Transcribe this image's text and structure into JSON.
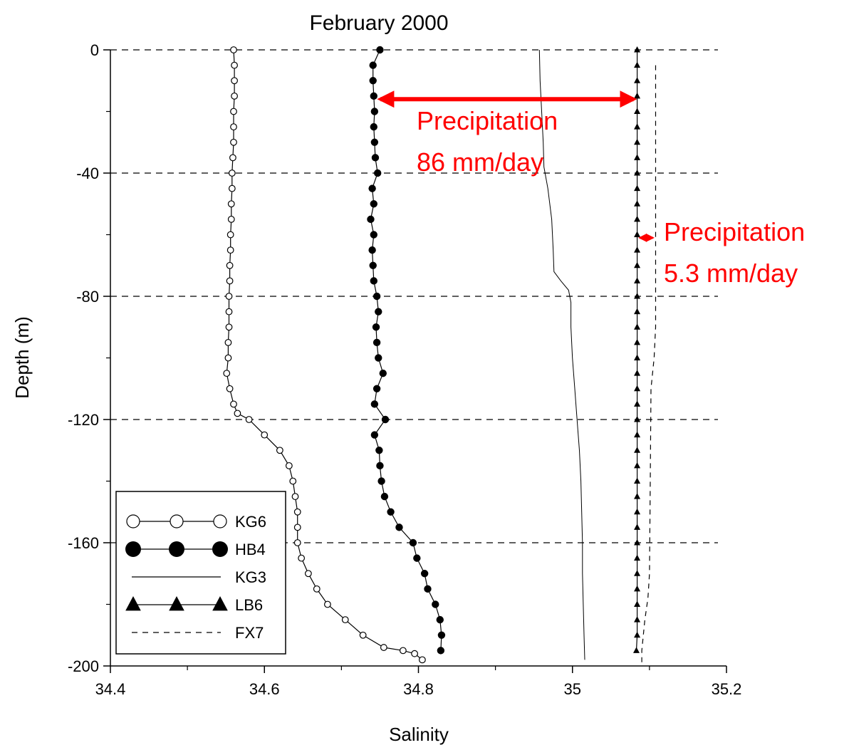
{
  "chart_data": {
    "type": "line",
    "title": "February 2000",
    "xlabel": "Salinity",
    "ylabel": "Depth (m)",
    "xlim": [
      34.4,
      35.2
    ],
    "ylim": [
      -200,
      0
    ],
    "x_ticks": [
      34.4,
      34.6,
      34.8,
      35,
      35.2
    ],
    "x_tick_labels": [
      "34.4",
      "34.6",
      "34.8",
      "35",
      "35.2"
    ],
    "y_ticks": [
      0,
      -40,
      -80,
      -120,
      -160,
      -200
    ],
    "y_tick_labels": [
      "0",
      "-40",
      "-80",
      "-120",
      "-160",
      "-200"
    ],
    "grid": "horizontal dashed at labeled depths",
    "legend_position": "bottom-left",
    "series": [
      {
        "name": "KG6",
        "marker": "open-circle",
        "line": "solid",
        "points": [
          [
            34.56,
            0
          ],
          [
            34.561,
            -5
          ],
          [
            34.561,
            -10
          ],
          [
            34.561,
            -15
          ],
          [
            34.56,
            -20
          ],
          [
            34.56,
            -25
          ],
          [
            34.56,
            -30
          ],
          [
            34.559,
            -35
          ],
          [
            34.558,
            -40
          ],
          [
            34.558,
            -45
          ],
          [
            34.557,
            -50
          ],
          [
            34.557,
            -55
          ],
          [
            34.556,
            -60
          ],
          [
            34.556,
            -65
          ],
          [
            34.555,
            -70
          ],
          [
            34.555,
            -75
          ],
          [
            34.554,
            -80
          ],
          [
            34.554,
            -85
          ],
          [
            34.554,
            -90
          ],
          [
            34.553,
            -95
          ],
          [
            34.553,
            -100
          ],
          [
            34.551,
            -105
          ],
          [
            34.555,
            -110
          ],
          [
            34.56,
            -115
          ],
          [
            34.565,
            -118
          ],
          [
            34.58,
            -120
          ],
          [
            34.6,
            -125
          ],
          [
            34.62,
            -130
          ],
          [
            34.632,
            -135
          ],
          [
            34.637,
            -140
          ],
          [
            34.64,
            -145
          ],
          [
            34.643,
            -150
          ],
          [
            34.643,
            -155
          ],
          [
            34.643,
            -160
          ],
          [
            34.648,
            -165
          ],
          [
            34.657,
            -170
          ],
          [
            34.668,
            -175
          ],
          [
            34.682,
            -180
          ],
          [
            34.705,
            -185
          ],
          [
            34.728,
            -190
          ],
          [
            34.755,
            -194
          ],
          [
            34.78,
            -195
          ],
          [
            34.795,
            -196
          ],
          [
            34.805,
            -198
          ]
        ]
      },
      {
        "name": "HB4",
        "marker": "filled-circle",
        "line": "solid",
        "points": [
          [
            34.75,
            0
          ],
          [
            34.741,
            -5
          ],
          [
            34.741,
            -10
          ],
          [
            34.742,
            -15
          ],
          [
            34.743,
            -20
          ],
          [
            34.742,
            -25
          ],
          [
            34.743,
            -30
          ],
          [
            34.744,
            -35
          ],
          [
            34.747,
            -40
          ],
          [
            34.74,
            -45
          ],
          [
            34.742,
            -50
          ],
          [
            34.738,
            -55
          ],
          [
            34.742,
            -60
          ],
          [
            34.74,
            -65
          ],
          [
            34.741,
            -70
          ],
          [
            34.742,
            -75
          ],
          [
            34.746,
            -80
          ],
          [
            34.748,
            -85
          ],
          [
            34.745,
            -90
          ],
          [
            34.746,
            -95
          ],
          [
            34.748,
            -100
          ],
          [
            34.754,
            -105
          ],
          [
            34.746,
            -110
          ],
          [
            34.743,
            -115
          ],
          [
            34.757,
            -120
          ],
          [
            34.743,
            -125
          ],
          [
            34.749,
            -130
          ],
          [
            34.75,
            -135
          ],
          [
            34.752,
            -140
          ],
          [
            34.756,
            -145
          ],
          [
            34.764,
            -150
          ],
          [
            34.775,
            -155
          ],
          [
            34.793,
            -160
          ],
          [
            34.798,
            -165
          ],
          [
            34.808,
            -170
          ],
          [
            34.812,
            -175
          ],
          [
            34.822,
            -180
          ],
          [
            34.828,
            -185
          ],
          [
            34.83,
            -190
          ],
          [
            34.829,
            -195
          ]
        ]
      },
      {
        "name": "KG3",
        "marker": "none",
        "line": "solid-thin",
        "points": [
          [
            34.957,
            0
          ],
          [
            34.958,
            -10
          ],
          [
            34.96,
            -20
          ],
          [
            34.962,
            -30
          ],
          [
            34.963,
            -38
          ],
          [
            34.968,
            -45
          ],
          [
            34.973,
            -55
          ],
          [
            34.975,
            -65
          ],
          [
            34.976,
            -72
          ],
          [
            34.985,
            -75
          ],
          [
            34.995,
            -78
          ],
          [
            34.998,
            -82
          ],
          [
            34.998,
            -90
          ],
          [
            35.0,
            -100
          ],
          [
            35.003,
            -110
          ],
          [
            35.006,
            -120
          ],
          [
            35.009,
            -130
          ],
          [
            35.011,
            -140
          ],
          [
            35.012,
            -150
          ],
          [
            35.013,
            -160
          ],
          [
            35.013,
            -170
          ],
          [
            35.014,
            -180
          ],
          [
            35.015,
            -190
          ],
          [
            35.016,
            -198
          ]
        ]
      },
      {
        "name": "LB6",
        "marker": "filled-triangle",
        "line": "solid",
        "points": [
          [
            35.084,
            0
          ],
          [
            35.084,
            -5
          ],
          [
            35.084,
            -10
          ],
          [
            35.084,
            -15
          ],
          [
            35.084,
            -20
          ],
          [
            35.084,
            -25
          ],
          [
            35.084,
            -30
          ],
          [
            35.084,
            -35
          ],
          [
            35.084,
            -40
          ],
          [
            35.084,
            -45
          ],
          [
            35.084,
            -50
          ],
          [
            35.084,
            -55
          ],
          [
            35.084,
            -60
          ],
          [
            35.084,
            -65
          ],
          [
            35.084,
            -70
          ],
          [
            35.084,
            -75
          ],
          [
            35.084,
            -80
          ],
          [
            35.084,
            -85
          ],
          [
            35.084,
            -90
          ],
          [
            35.084,
            -95
          ],
          [
            35.084,
            -100
          ],
          [
            35.084,
            -105
          ],
          [
            35.084,
            -110
          ],
          [
            35.084,
            -115
          ],
          [
            35.084,
            -120
          ],
          [
            35.084,
            -125
          ],
          [
            35.084,
            -130
          ],
          [
            35.084,
            -135
          ],
          [
            35.084,
            -140
          ],
          [
            35.084,
            -145
          ],
          [
            35.084,
            -150
          ],
          [
            35.084,
            -155
          ],
          [
            35.084,
            -160
          ],
          [
            35.084,
            -165
          ],
          [
            35.084,
            -170
          ],
          [
            35.084,
            -175
          ],
          [
            35.084,
            -180
          ],
          [
            35.084,
            -185
          ],
          [
            35.084,
            -190
          ],
          [
            35.083,
            -195
          ]
        ]
      },
      {
        "name": "FX7",
        "marker": "none",
        "line": "dashed",
        "points": [
          [
            35.108,
            -5
          ],
          [
            35.108,
            -40
          ],
          [
            35.108,
            -80
          ],
          [
            35.108,
            -90
          ],
          [
            35.106,
            -100
          ],
          [
            35.102,
            -110
          ],
          [
            35.101,
            -140
          ],
          [
            35.1,
            -170
          ],
          [
            35.098,
            -178
          ],
          [
            35.094,
            -185
          ],
          [
            35.09,
            -195
          ],
          [
            35.09,
            -200
          ]
        ]
      }
    ],
    "annotations": [
      {
        "line1": "Precipitation",
        "line2": "86 mm/day",
        "arrow_from_x": 34.747,
        "arrow_to_x": 35.083,
        "arrow_depth": -16,
        "color": "#ff0000"
      },
      {
        "line1": "Precipitation",
        "line2": "5.3 mm/day",
        "arrow_from_x": 35.084,
        "arrow_to_x": 35.108,
        "arrow_depth": -61,
        "color": "#ff0000"
      }
    ]
  }
}
